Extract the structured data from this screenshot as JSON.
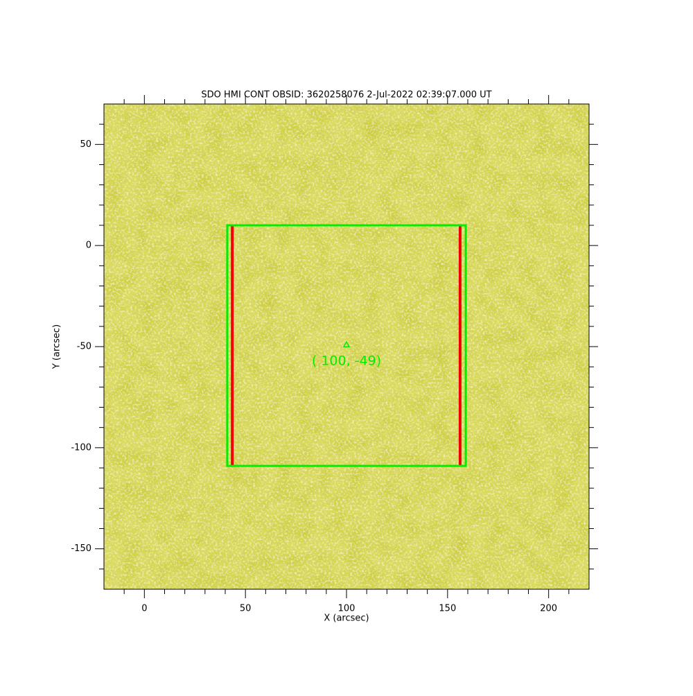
{
  "chart_data": {
    "type": "image",
    "title": "SDO HMI CONT OBSID: 3620258076  2-Jul-2022 02:39:07.000 UT",
    "xlabel": "X (arcsec)",
    "ylabel": "Y (arcsec)",
    "xlim": [
      -20,
      220
    ],
    "ylim": [
      -170,
      70
    ],
    "xticks": [
      0,
      50,
      100,
      150,
      200
    ],
    "yticks": [
      -150,
      -100,
      -50,
      0,
      50
    ],
    "xminorticks": [
      -10,
      10,
      20,
      30,
      40,
      60,
      70,
      80,
      90,
      110,
      120,
      130,
      140,
      160,
      170,
      180,
      190,
      210
    ],
    "yminorticks": [
      -160,
      -140,
      -130,
      -120,
      -110,
      -90,
      -80,
      -70,
      -60,
      -40,
      -30,
      -20,
      -10,
      10,
      20,
      30,
      40,
      60
    ],
    "image_color": "#d9d95a",
    "box": {
      "x": [
        41,
        159
      ],
      "y": [
        -109,
        10
      ],
      "color": "#00ee00"
    },
    "lines": [
      {
        "x": 43.5,
        "y": [
          -109,
          10
        ],
        "color": "#ee0000"
      },
      {
        "x": 156.2,
        "y": [
          -109,
          10
        ],
        "color": "#ee0000"
      }
    ],
    "marker": {
      "x": 100,
      "y": -49,
      "label": "( 100, -49)",
      "color": "#00ee00"
    }
  }
}
